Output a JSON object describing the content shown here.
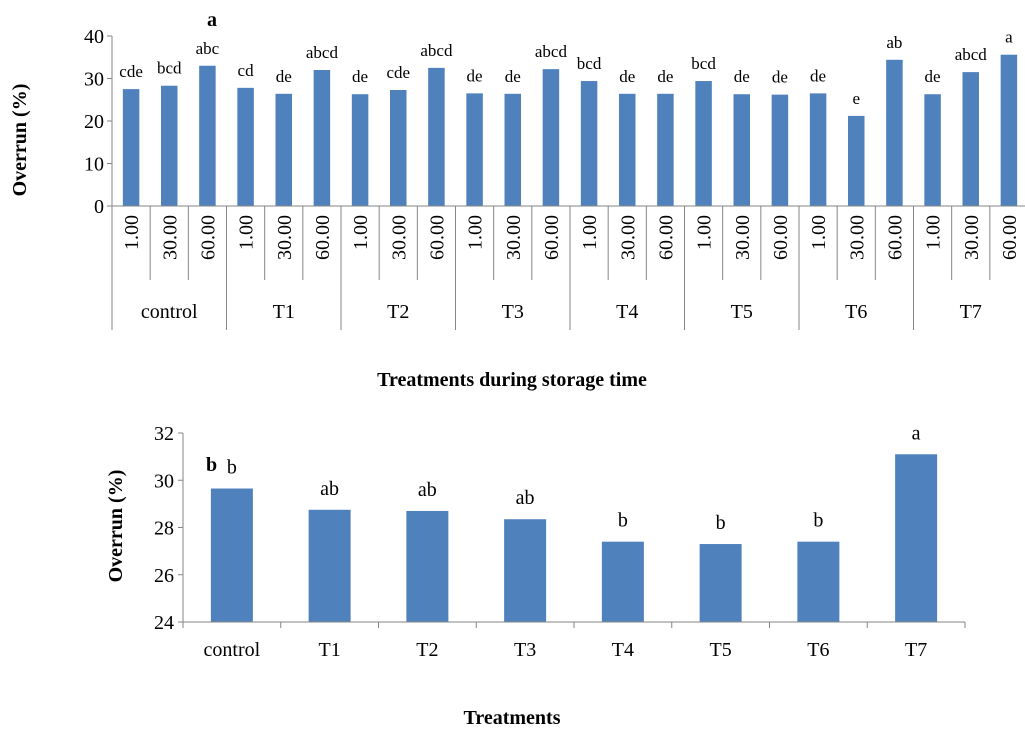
{
  "panel_labels": [
    "a",
    "b"
  ],
  "chart_data": [
    {
      "panel": "a",
      "type": "bar",
      "ylabel": "Overrun (%)",
      "xlabel": "Treatments during storage time",
      "ylim": [
        0,
        40
      ],
      "yticks": [
        0,
        10,
        20,
        30,
        40
      ],
      "grid": false,
      "groups": [
        {
          "name": "control",
          "times": [
            "1.00",
            "30.00",
            "60.00"
          ],
          "values": [
            27.5,
            28.3,
            33.0
          ],
          "labels": [
            "cde",
            "bcd",
            "abc"
          ]
        },
        {
          "name": "T1",
          "times": [
            "1.00",
            "30.00",
            "60.00"
          ],
          "values": [
            27.8,
            26.4,
            32.0
          ],
          "labels": [
            "cd",
            "de",
            "abcd"
          ]
        },
        {
          "name": "T2",
          "times": [
            "1.00",
            "30.00",
            "60.00"
          ],
          "values": [
            26.3,
            27.3,
            32.5
          ],
          "labels": [
            "de",
            "cde",
            "abcd"
          ]
        },
        {
          "name": "T3",
          "times": [
            "1.00",
            "30.00",
            "60.00"
          ],
          "values": [
            26.5,
            26.4,
            32.2
          ],
          "labels": [
            "de",
            "de",
            "abcd"
          ]
        },
        {
          "name": "T4",
          "times": [
            "1.00",
            "30.00",
            "60.00"
          ],
          "values": [
            29.4,
            26.4,
            26.4
          ],
          "labels": [
            "bcd",
            "de",
            "de"
          ]
        },
        {
          "name": "T5",
          "times": [
            "1.00",
            "30.00",
            "60.00"
          ],
          "values": [
            29.4,
            26.3,
            26.2
          ],
          "labels": [
            "bcd",
            "de",
            "de"
          ]
        },
        {
          "name": "T6",
          "times": [
            "1.00",
            "30.00",
            "60.00"
          ],
          "values": [
            26.5,
            21.2,
            34.4
          ],
          "labels": [
            "de",
            "e",
            "ab"
          ]
        },
        {
          "name": "T7",
          "times": [
            "1.00",
            "30.00",
            "60.00"
          ],
          "values": [
            26.3,
            31.5,
            35.6
          ],
          "labels": [
            "de",
            "abcd",
            "a"
          ]
        }
      ]
    },
    {
      "panel": "b",
      "type": "bar",
      "ylabel": "Overrun (%)",
      "xlabel": "Treatments",
      "ylim": [
        24,
        32
      ],
      "yticks": [
        24,
        26,
        28,
        30,
        32
      ],
      "grid": false,
      "categories": [
        "control",
        "T1",
        "T2",
        "T3",
        "T4",
        "T5",
        "T6",
        "T7"
      ],
      "values": [
        29.65,
        28.75,
        28.7,
        28.35,
        27.4,
        27.3,
        27.4,
        31.1
      ],
      "labels": [
        "b",
        "ab",
        "ab",
        "ab",
        "b",
        "b",
        "b",
        "a"
      ]
    }
  ],
  "colors": {
    "bar": "#4f81bd",
    "axis": "#868686"
  }
}
